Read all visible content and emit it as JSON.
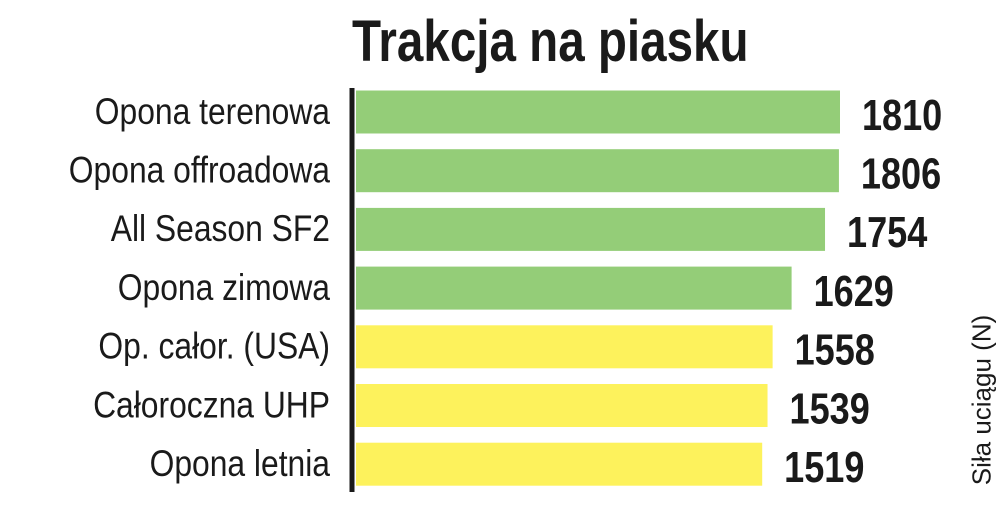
{
  "chart_data": {
    "type": "bar",
    "orientation": "horizontal",
    "title": "Trakcja na piasku",
    "categories": [
      "Opona terenowa",
      "Opona offroadowa",
      "All Season SF2",
      "Opona zimowa",
      "Op. całor. (USA)",
      "Całoroczna UHP",
      "Opona letnia"
    ],
    "values": [
      1810,
      1806,
      1754,
      1629,
      1558,
      1539,
      1519
    ],
    "value_labels": [
      "1810",
      "1806",
      "1754",
      "1629",
      "1558",
      "1539",
      "1519"
    ],
    "bar_colors": [
      "#94cd78",
      "#94cd78",
      "#94cd78",
      "#94cd78",
      "#fdf25c",
      "#fdf25c",
      "#fdf25c"
    ],
    "xlabel": "",
    "ylabel": "Siła uciągu (N)",
    "xlim": [
      0,
      1810
    ],
    "grid": false,
    "legend": "none",
    "axis_color": "#1a1a1a"
  }
}
